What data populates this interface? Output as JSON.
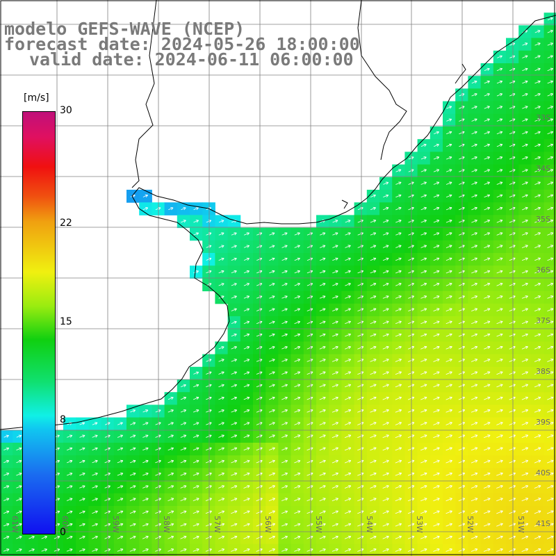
{
  "title": {
    "line1": "modelo GEFS-WAVE (NCEP)",
    "line2": "forecast date: 2024-05-26 18:00:00",
    "line3": "valid date: 2024-06-11 06:00:00"
  },
  "colorbar": {
    "unit": "[m/s]",
    "min": 0,
    "max": 30,
    "ticks": [
      {
        "value": 30,
        "label": "30"
      },
      {
        "value": 22,
        "label": "22"
      },
      {
        "value": 15,
        "label": "15"
      },
      {
        "value": 8,
        "label": "8"
      },
      {
        "value": 0,
        "label": "0"
      }
    ],
    "colors": [
      "#1010f0",
      "#1a6cf0",
      "#10c8f0",
      "#10f0e6",
      "#10e070",
      "#10d010",
      "#9aec10",
      "#f0f010",
      "#f0a010",
      "#f05010",
      "#f01010",
      "#e01060",
      "#c0107a"
    ]
  },
  "map": {
    "lat_labels": [
      "33S",
      "34S",
      "35S",
      "36S",
      "37S",
      "38S",
      "39S",
      "40S",
      "41S"
    ],
    "lon_labels": [
      "61W",
      "60W",
      "59W",
      "58W",
      "57W",
      "56W",
      "55W",
      "54W",
      "53W",
      "52W",
      "51W"
    ],
    "wind_direction": "toward north-east",
    "colors": {
      "land": "#ffffff",
      "coast": "#000000",
      "grid": "#808080",
      "arrows": "#ffffff"
    }
  }
}
